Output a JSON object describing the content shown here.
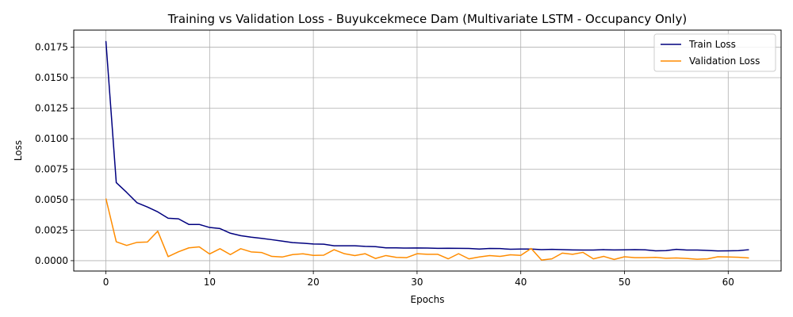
{
  "chart_data": {
    "type": "line",
    "title": "Training vs Validation Loss - Buyukcekmece Dam (Multivariate LSTM - Occupancy Only)",
    "xlabel": "Epochs",
    "ylabel": "Loss",
    "xlim": [
      -3.1,
      65.1
    ],
    "ylim": [
      -0.00085,
      0.0189
    ],
    "x_ticks": [
      0,
      10,
      20,
      30,
      40,
      50,
      60
    ],
    "x_tick_labels": [
      "0",
      "10",
      "20",
      "30",
      "40",
      "50",
      "60"
    ],
    "y_ticks": [
      0,
      0.0025,
      0.005,
      0.0075,
      0.01,
      0.0125,
      0.015,
      0.0175
    ],
    "y_tick_labels": [
      "0.0000",
      "0.0025",
      "0.0050",
      "0.0075",
      "0.0100",
      "0.0125",
      "0.0150",
      "0.0175"
    ],
    "grid": true,
    "legend_position": "upper right",
    "x": [
      0,
      1,
      2,
      3,
      4,
      5,
      6,
      7,
      8,
      9,
      10,
      11,
      12,
      13,
      14,
      15,
      16,
      17,
      18,
      19,
      20,
      21,
      22,
      23,
      24,
      25,
      26,
      27,
      28,
      29,
      30,
      31,
      32,
      33,
      34,
      35,
      36,
      37,
      38,
      39,
      40,
      41,
      42,
      43,
      44,
      45,
      46,
      47,
      48,
      49,
      50,
      51,
      52,
      53,
      54,
      55,
      56,
      57,
      58,
      59,
      60,
      61,
      62
    ],
    "series": [
      {
        "name": "Train Loss",
        "color": "#00007f",
        "values": [
          0.018,
          0.0064,
          0.0056,
          0.00475,
          0.0044,
          0.004,
          0.00348,
          0.00343,
          0.00297,
          0.00297,
          0.00272,
          0.00263,
          0.00225,
          0.00205,
          0.00193,
          0.00183,
          0.00172,
          0.0016,
          0.00148,
          0.00143,
          0.00137,
          0.00135,
          0.00122,
          0.00122,
          0.00122,
          0.00117,
          0.00115,
          0.00105,
          0.00105,
          0.00103,
          0.00104,
          0.00103,
          0.00101,
          0.00102,
          0.00101,
          0.001,
          0.00095,
          0.001,
          0.00099,
          0.00094,
          0.00095,
          0.00095,
          0.0009,
          0.00093,
          0.0009,
          0.00088,
          0.00087,
          0.00087,
          0.0009,
          0.00088,
          0.00089,
          0.0009,
          0.00089,
          0.00081,
          0.00082,
          0.00093,
          0.00087,
          0.00087,
          0.00084,
          0.0008,
          0.00081,
          0.00082,
          0.0009
        ]
      },
      {
        "name": "Validation Loss",
        "color": "#ff8c00",
        "values": [
          0.0051,
          0.00155,
          0.00125,
          0.0015,
          0.00153,
          0.00242,
          0.00033,
          0.00073,
          0.00105,
          0.00113,
          0.00055,
          0.00098,
          0.0005,
          0.00098,
          0.00072,
          0.00067,
          0.00035,
          0.0003,
          0.0005,
          0.00056,
          0.00043,
          0.00045,
          0.0009,
          0.00057,
          0.00042,
          0.00057,
          0.00018,
          0.00042,
          0.00027,
          0.00025,
          0.00057,
          0.00052,
          0.00052,
          0.00015,
          0.00057,
          0.00015,
          0.0003,
          0.00042,
          0.00035,
          0.00048,
          0.00043,
          0.001,
          5e-05,
          0.00015,
          0.00062,
          0.00052,
          0.00068,
          0.00015,
          0.00035,
          0.0001,
          0.00032,
          0.00025,
          0.00025,
          0.00027,
          0.0002,
          0.00022,
          0.00018,
          0.00012,
          0.00015,
          0.00032,
          0.0003,
          0.00028,
          0.00022
        ]
      }
    ]
  }
}
